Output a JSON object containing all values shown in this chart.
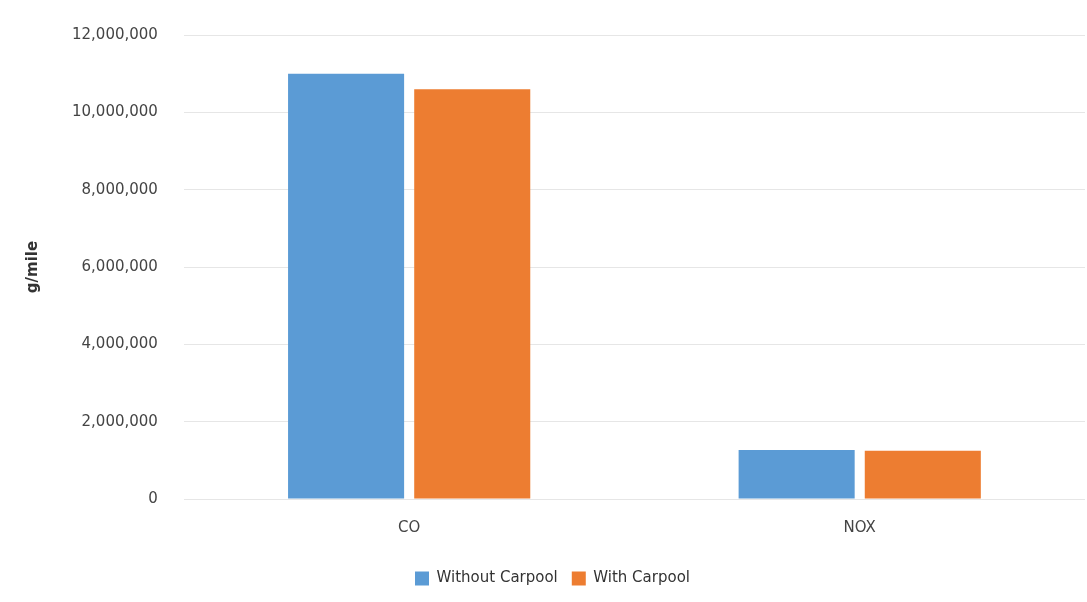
{
  "chart_data": {
    "type": "bar",
    "ylabel": "g/mile",
    "categories": [
      "CO",
      "NOX"
    ],
    "series": [
      {
        "name": "Without Carpool",
        "color": "#5b9bd5",
        "values": [
          11000000,
          1270000
        ]
      },
      {
        "name": "With Carpool",
        "color": "#ed7d31",
        "values": [
          10600000,
          1250000
        ]
      }
    ],
    "ylim": [
      0,
      12000000
    ],
    "yticks": [
      {
        "value": 0,
        "label": "0"
      },
      {
        "value": 2000000,
        "label": "2,000,000"
      },
      {
        "value": 4000000,
        "label": "4,000,000"
      },
      {
        "value": 6000000,
        "label": "6,000,000"
      },
      {
        "value": 8000000,
        "label": "8,000,000"
      },
      {
        "value": 10000000,
        "label": "10,000,000"
      },
      {
        "value": 12000000,
        "label": "12,000,000"
      }
    ],
    "grid": "y",
    "legend": "bottom"
  }
}
